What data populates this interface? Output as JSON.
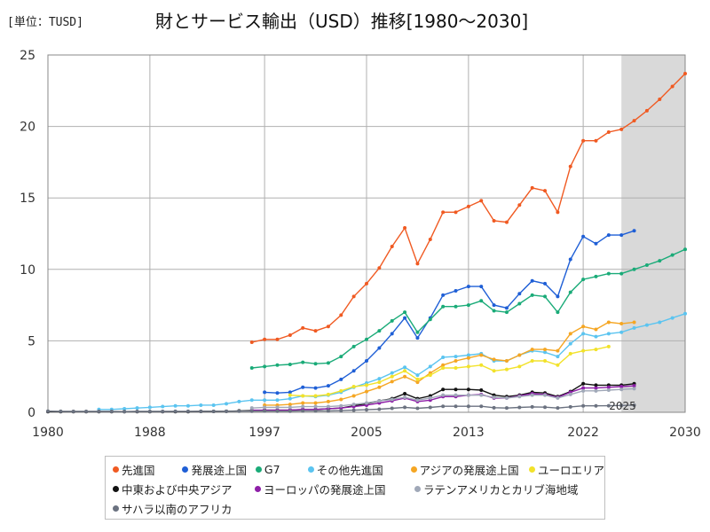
{
  "unit_label": "[単位：TUSD]",
  "title": "財とサービス輸出（USD）推移[1980～2030]",
  "chart_data": {
    "type": "line",
    "xlim": [
      1980,
      2030
    ],
    "ylim": [
      0,
      25
    ],
    "x_ticks": [
      1980,
      1988,
      1997,
      2005,
      2013,
      2022,
      2030
    ],
    "y_ticks": [
      0,
      5,
      10,
      15,
      20,
      25
    ],
    "grid": true,
    "forecast_shade_from": 2025,
    "annotation": "2025",
    "legend_position": "bottom",
    "series": [
      {
        "name": "先進国",
        "color": "#f05a22",
        "x": [
          1996,
          1997,
          1998,
          1999,
          2000,
          2001,
          2002,
          2003,
          2004,
          2005,
          2006,
          2007,
          2008,
          2009,
          2010,
          2011,
          2012,
          2013,
          2014,
          2015,
          2016,
          2017,
          2018,
          2019,
          2020,
          2021,
          2022,
          2023,
          2024,
          2025,
          2026,
          2027,
          2028,
          2029,
          2030
        ],
        "y": [
          4.9,
          5.1,
          5.1,
          5.4,
          5.9,
          5.7,
          6.0,
          6.8,
          8.1,
          9.0,
          10.1,
          11.6,
          12.9,
          10.4,
          12.1,
          14.0,
          14.0,
          14.4,
          14.8,
          13.4,
          13.3,
          14.5,
          15.7,
          15.5,
          14.0,
          17.2,
          19.0,
          19.0,
          19.6,
          19.8,
          20.4,
          21.1,
          21.9,
          22.8,
          23.7
        ]
      },
      {
        "name": "発展途上国",
        "color": "#1f5fd6",
        "x": [
          1997,
          1998,
          1999,
          2000,
          2001,
          2002,
          2003,
          2004,
          2005,
          2006,
          2007,
          2008,
          2009,
          2010,
          2011,
          2012,
          2013,
          2014,
          2015,
          2016,
          2017,
          2018,
          2019,
          2020,
          2021,
          2022,
          2023,
          2024,
          2025,
          2026
        ],
        "y": [
          1.4,
          1.35,
          1.4,
          1.75,
          1.7,
          1.85,
          2.3,
          2.9,
          3.6,
          4.5,
          5.5,
          6.6,
          5.2,
          6.6,
          8.2,
          8.5,
          8.8,
          8.8,
          7.5,
          7.3,
          8.3,
          9.2,
          9.0,
          8.1,
          10.7,
          12.3,
          11.8,
          12.4,
          12.4,
          12.7
        ]
      },
      {
        "name": "G7",
        "color": "#1aab78",
        "x": [
          1996,
          1997,
          1998,
          1999,
          2000,
          2001,
          2002,
          2003,
          2004,
          2005,
          2006,
          2007,
          2008,
          2009,
          2010,
          2011,
          2012,
          2013,
          2014,
          2015,
          2016,
          2017,
          2018,
          2019,
          2020,
          2021,
          2022,
          2023,
          2024,
          2025,
          2026,
          2027,
          2028,
          2029,
          2030
        ],
        "y": [
          3.1,
          3.2,
          3.3,
          3.35,
          3.5,
          3.4,
          3.45,
          3.9,
          4.6,
          5.1,
          5.7,
          6.4,
          7.0,
          5.6,
          6.5,
          7.4,
          7.4,
          7.5,
          7.8,
          7.1,
          7.0,
          7.6,
          8.2,
          8.1,
          7.0,
          8.4,
          9.3,
          9.5,
          9.7,
          9.7,
          10.0,
          10.3,
          10.6,
          11.0,
          11.4
        ]
      },
      {
        "name": "その他先進国",
        "color": "#5bc4f0",
        "x": [
          1984,
          1985,
          1986,
          1987,
          1988,
          1989,
          1990,
          1991,
          1992,
          1993,
          1994,
          1995,
          1996,
          1997,
          1998,
          1999,
          2000,
          2001,
          2002,
          2003,
          2004,
          2005,
          2006,
          2007,
          2008,
          2009,
          2010,
          2011,
          2012,
          2013,
          2014,
          2015,
          2016,
          2017,
          2018,
          2019,
          2020,
          2021,
          2022,
          2023,
          2024,
          2025,
          2026,
          2027,
          2028,
          2029,
          2030
        ],
        "y": [
          0.2,
          0.2,
          0.25,
          0.3,
          0.35,
          0.4,
          0.45,
          0.45,
          0.5,
          0.5,
          0.6,
          0.75,
          0.85,
          0.85,
          0.85,
          0.95,
          1.15,
          1.1,
          1.2,
          1.4,
          1.75,
          2.05,
          2.35,
          2.75,
          3.15,
          2.6,
          3.2,
          3.85,
          3.9,
          4.0,
          4.1,
          3.6,
          3.6,
          4.0,
          4.3,
          4.2,
          3.9,
          4.8,
          5.5,
          5.3,
          5.5,
          5.6,
          5.9,
          6.1,
          6.3,
          6.6,
          6.9
        ]
      },
      {
        "name": "アジアの発展途上国",
        "color": "#f5a623",
        "x": [
          1997,
          1998,
          1999,
          2000,
          2001,
          2002,
          2003,
          2004,
          2005,
          2006,
          2007,
          2008,
          2009,
          2010,
          2011,
          2012,
          2013,
          2014,
          2015,
          2016,
          2017,
          2018,
          2019,
          2020,
          2021,
          2022,
          2023,
          2024,
          2025,
          2026
        ],
        "y": [
          0.5,
          0.5,
          0.55,
          0.65,
          0.65,
          0.75,
          0.9,
          1.15,
          1.45,
          1.75,
          2.15,
          2.5,
          2.1,
          2.75,
          3.3,
          3.6,
          3.8,
          4.0,
          3.7,
          3.6,
          4.0,
          4.4,
          4.4,
          4.3,
          5.5,
          6.0,
          5.8,
          6.3,
          6.2,
          6.3
        ]
      },
      {
        "name": "ユーロエリア",
        "color": "#f2e22a",
        "x": [
          1999,
          2000,
          2001,
          2002,
          2003,
          2004,
          2005,
          2006,
          2007,
          2008,
          2009,
          2010,
          2011,
          2012,
          2013,
          2014,
          2015,
          2016,
          2017,
          2018,
          2019,
          2020,
          2021,
          2022,
          2023,
          2024
        ],
        "y": [
          1.2,
          1.15,
          1.15,
          1.25,
          1.5,
          1.8,
          1.9,
          2.1,
          2.5,
          2.9,
          2.3,
          2.6,
          3.1,
          3.1,
          3.2,
          3.3,
          2.9,
          3.0,
          3.2,
          3.6,
          3.6,
          3.3,
          4.1,
          4.3,
          4.4,
          4.6
        ]
      },
      {
        "name": "中東および中央アジア",
        "color": "#111111",
        "x": [
          1980,
          1981,
          1982,
          1983,
          1984,
          1985,
          1986,
          1987,
          1988,
          1989,
          1990,
          1991,
          1992,
          1993,
          1994,
          1995,
          1996,
          1997,
          1998,
          1999,
          2000,
          2001,
          2002,
          2003,
          2004,
          2005,
          2006,
          2007,
          2008,
          2009,
          2010,
          2011,
          2012,
          2013,
          2014,
          2015,
          2016,
          2017,
          2018,
          2019,
          2020,
          2021,
          2022,
          2023,
          2024,
          2025,
          2026
        ],
        "y": [
          0.05,
          0.05,
          0.05,
          0.05,
          0.05,
          0.05,
          0.05,
          0.05,
          0.05,
          0.05,
          0.05,
          0.05,
          0.06,
          0.06,
          0.07,
          0.1,
          0.12,
          0.15,
          0.15,
          0.15,
          0.2,
          0.2,
          0.25,
          0.3,
          0.45,
          0.6,
          0.8,
          0.95,
          1.3,
          0.95,
          1.15,
          1.6,
          1.6,
          1.6,
          1.55,
          1.2,
          1.1,
          1.2,
          1.4,
          1.35,
          1.1,
          1.45,
          2.0,
          1.9,
          1.9,
          1.9,
          2.0
        ]
      },
      {
        "name": "ヨーロッパの発展途上国",
        "color": "#8e1fa8",
        "x": [
          1996,
          1997,
          1998,
          1999,
          2000,
          2001,
          2002,
          2003,
          2004,
          2005,
          2006,
          2007,
          2008,
          2009,
          2010,
          2011,
          2012,
          2013,
          2014,
          2015,
          2016,
          2017,
          2018,
          2019,
          2020,
          2021,
          2022,
          2023,
          2024,
          2025,
          2026
        ],
        "y": [
          0.15,
          0.15,
          0.15,
          0.16,
          0.2,
          0.2,
          0.25,
          0.3,
          0.4,
          0.5,
          0.65,
          0.8,
          1.0,
          0.75,
          0.85,
          1.1,
          1.1,
          1.2,
          1.25,
          1.0,
          1.0,
          1.15,
          1.3,
          1.25,
          1.05,
          1.4,
          1.7,
          1.7,
          1.75,
          1.8,
          1.85
        ]
      },
      {
        "name": "ラテンアメリカとカリブ海地域",
        "color": "#a0a8b8",
        "x": [
          1996,
          1997,
          1998,
          1999,
          2000,
          2001,
          2002,
          2003,
          2004,
          2005,
          2006,
          2007,
          2008,
          2009,
          2010,
          2011,
          2012,
          2013,
          2014,
          2015,
          2016,
          2017,
          2018,
          2019,
          2020,
          2021,
          2022,
          2023,
          2024,
          2025,
          2026
        ],
        "y": [
          0.3,
          0.35,
          0.35,
          0.35,
          0.4,
          0.4,
          0.4,
          0.45,
          0.55,
          0.65,
          0.8,
          0.9,
          1.05,
          0.85,
          1.0,
          1.2,
          1.2,
          1.2,
          1.2,
          1.05,
          1.0,
          1.1,
          1.2,
          1.2,
          1.0,
          1.25,
          1.5,
          1.5,
          1.55,
          1.6,
          1.65
        ]
      },
      {
        "name": "サハラ以南のアフリカ",
        "color": "#6b7280",
        "x": [
          1980,
          1981,
          1982,
          1983,
          1984,
          1985,
          1986,
          1987,
          1988,
          1989,
          1990,
          1991,
          1992,
          1993,
          1994,
          1995,
          1996,
          1997,
          1998,
          1999,
          2000,
          2001,
          2002,
          2003,
          2004,
          2005,
          2006,
          2007,
          2008,
          2009,
          2010,
          2011,
          2012,
          2013,
          2014,
          2015,
          2016,
          2017,
          2018,
          2019,
          2020,
          2021,
          2022,
          2023,
          2024,
          2025,
          2026
        ],
        "y": [
          0.08,
          0.07,
          0.06,
          0.06,
          0.06,
          0.06,
          0.05,
          0.06,
          0.06,
          0.06,
          0.07,
          0.07,
          0.07,
          0.07,
          0.07,
          0.08,
          0.08,
          0.09,
          0.08,
          0.08,
          0.1,
          0.1,
          0.1,
          0.12,
          0.15,
          0.18,
          0.22,
          0.28,
          0.35,
          0.28,
          0.34,
          0.42,
          0.42,
          0.42,
          0.42,
          0.32,
          0.3,
          0.34,
          0.38,
          0.36,
          0.3,
          0.38,
          0.45,
          0.45,
          0.46,
          0.48,
          0.5
        ]
      }
    ]
  }
}
